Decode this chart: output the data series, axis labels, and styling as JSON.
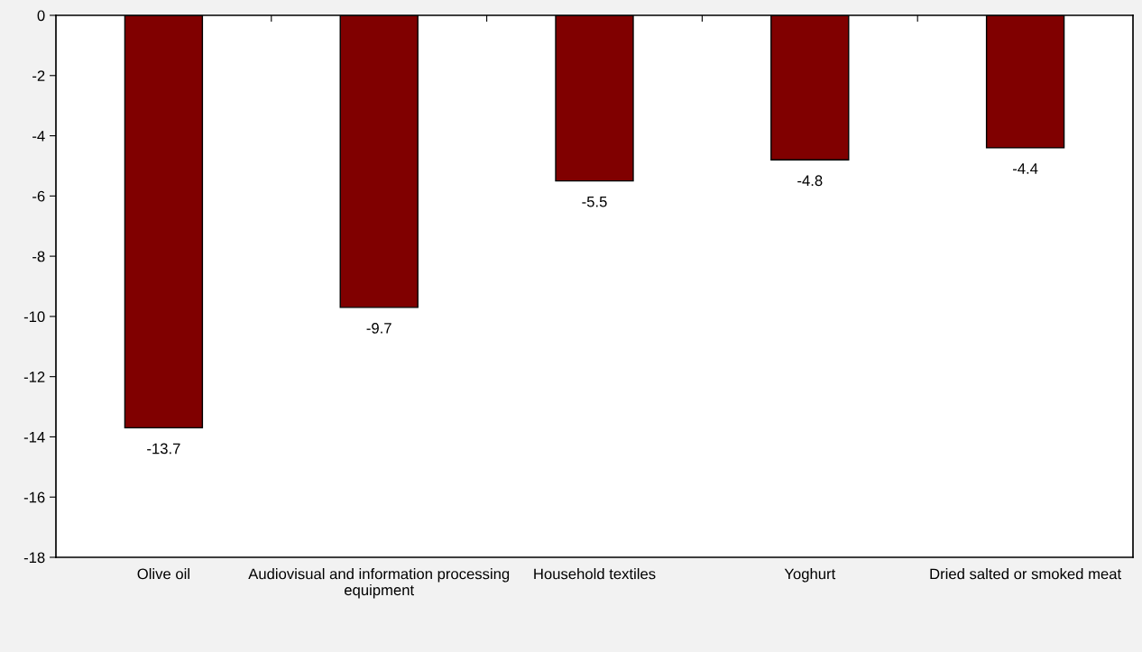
{
  "chart_data": {
    "type": "bar",
    "categories": [
      "Olive oil",
      "Audiovisual and information processing equipment",
      "Household textiles",
      "Yoghurt",
      "Dried salted or smoked meat"
    ],
    "values": [
      -13.7,
      -9.7,
      -5.5,
      -4.8,
      -4.4
    ],
    "color": "#800000",
    "ylim": [
      -18,
      0
    ],
    "yticks": [
      0,
      -2,
      -4,
      -6,
      -8,
      -10,
      -12,
      -14,
      -16,
      -18
    ],
    "data_labels": true,
    "grid": false
  }
}
